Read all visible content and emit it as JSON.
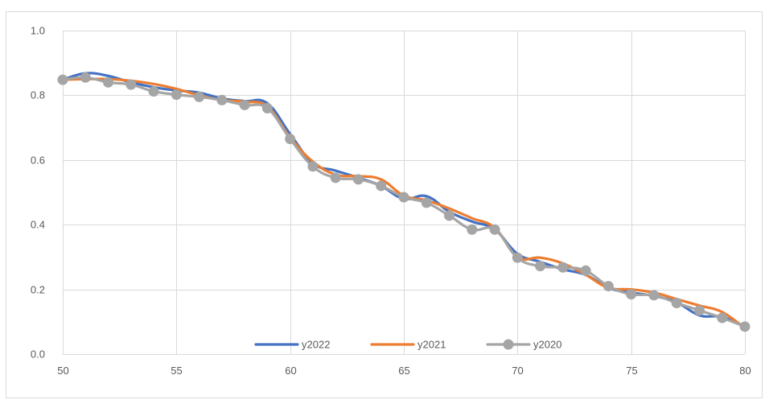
{
  "chart_data": {
    "type": "line",
    "title": "",
    "xlabel": "",
    "ylabel": "",
    "xlim": [
      50,
      80
    ],
    "ylim": [
      0.0,
      1.0
    ],
    "x_ticks": [
      "50",
      "55",
      "60",
      "65",
      "70",
      "75",
      "80"
    ],
    "y_ticks": [
      "0.0",
      "0.2",
      "0.4",
      "0.6",
      "0.8",
      "1.0"
    ],
    "grid": true,
    "legend_position": "bottom",
    "x": [
      50,
      51,
      52,
      53,
      54,
      55,
      56,
      57,
      58,
      59,
      60,
      61,
      62,
      63,
      64,
      65,
      66,
      67,
      68,
      69,
      70,
      71,
      72,
      73,
      74,
      75,
      76,
      77,
      78,
      79,
      80
    ],
    "series": [
      {
        "name": "y2022",
        "color": "#4472C4",
        "marker": false,
        "values": [
          0.848,
          0.868,
          0.86,
          0.84,
          0.825,
          0.815,
          0.808,
          0.79,
          0.782,
          0.775,
          0.68,
          0.59,
          0.567,
          0.545,
          0.52,
          0.48,
          0.488,
          0.44,
          0.41,
          0.385,
          0.31,
          0.285,
          0.262,
          0.245,
          0.205,
          0.19,
          0.18,
          0.16,
          0.12,
          0.115,
          0.085
        ]
      },
      {
        "name": "y2021",
        "color": "#ED7D31",
        "marker": false,
        "values": [
          0.848,
          0.85,
          0.85,
          0.845,
          0.835,
          0.82,
          0.8,
          0.785,
          0.78,
          0.765,
          0.67,
          0.595,
          0.555,
          0.55,
          0.54,
          0.49,
          0.475,
          0.45,
          0.42,
          0.39,
          0.3,
          0.298,
          0.28,
          0.245,
          0.205,
          0.2,
          0.19,
          0.17,
          0.15,
          0.13,
          0.08
        ]
      },
      {
        "name": "y2020",
        "color": "#A5A5A5",
        "marker": true,
        "values": [
          0.848,
          0.855,
          0.84,
          0.833,
          0.812,
          0.802,
          0.795,
          0.785,
          0.77,
          0.76,
          0.665,
          0.58,
          0.545,
          0.54,
          0.52,
          0.485,
          0.468,
          0.428,
          0.385,
          0.385,
          0.298,
          0.272,
          0.268,
          0.258,
          0.21,
          0.185,
          0.182,
          0.158,
          0.135,
          0.112,
          0.085
        ]
      }
    ]
  }
}
